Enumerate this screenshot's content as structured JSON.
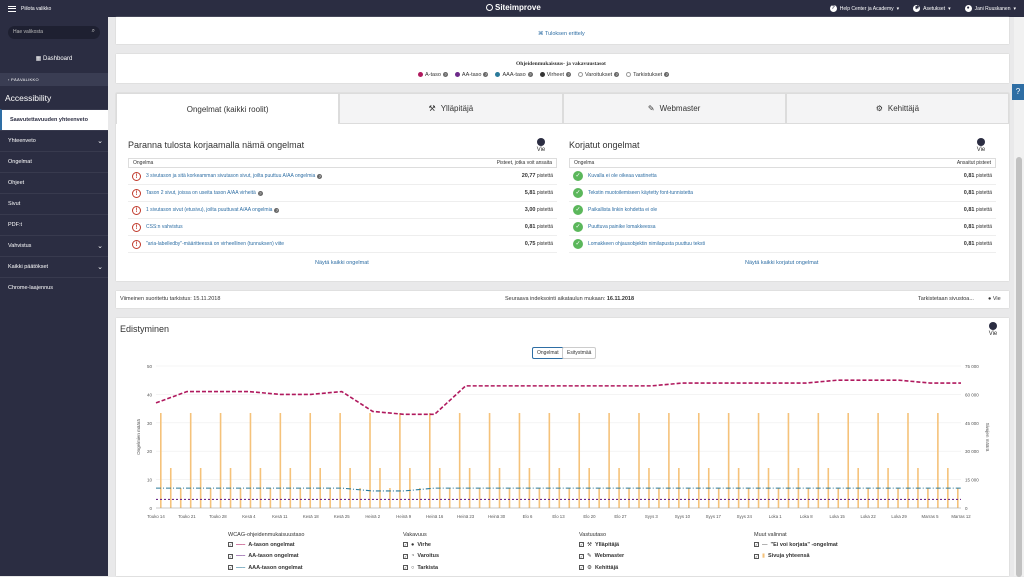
{
  "topbar": {
    "menu": "Piilota valikko",
    "brand": "Siteimprove",
    "help": "Help Center ja Academy",
    "settings": "Asetukset",
    "user": "Jani Ruuskanen"
  },
  "sidebar": {
    "search_placeholder": "Hae valikosta",
    "dashboard": "Dashboard",
    "back": "PÄÄVALIKKO",
    "section": "Accessibility",
    "items": [
      "Saavutettavuuden yhteenveto",
      "Yhteenveto",
      "Ongelmat",
      "Ohjeet",
      "Sivut",
      "PDF:t",
      "Vahvistus",
      "Kaikki päätökset",
      "Chrome-laajennus"
    ]
  },
  "top": {
    "results_link": "Tuloksen erittely",
    "legend_title": "Ohjeidenmukaisuus- ja vakavuustasot",
    "legend": [
      {
        "label": "A-taso",
        "color": "#b0195e"
      },
      {
        "label": "AA-taso",
        "color": "#6d2a8a"
      },
      {
        "label": "AAA-taso",
        "color": "#2a7a9a"
      },
      {
        "label": "Virheet",
        "color": "#333"
      },
      {
        "label": "Varoitukset",
        "color": "#999"
      },
      {
        "label": "Tarkistukset",
        "color": "#999"
      }
    ]
  },
  "tabs": [
    "Ongelmat (kaikki roolit)",
    "Ylläpitäjä",
    "Webmaster",
    "Kehittäjä"
  ],
  "fix": {
    "title": "Paranna tulosta korjaamalla nämä ongelmat",
    "export": "Vie",
    "col1": "Ongelma",
    "col2": "Pisteet, jotka voit ansaita",
    "rows": [
      {
        "text": "3 sivutason ja sitä korkeamman sivutason sivut, joilta puuttuu A/AA ongelmia",
        "value": "20,77"
      },
      {
        "text": "Tason 2 sivut, joissa on useita tason A/AA virheitä",
        "value": "5,81"
      },
      {
        "text": "1 sivutason sivut (etusivu), joilta puuttuvat A/AA ongelmia",
        "value": "3,00"
      },
      {
        "text": "CSS:n vahvistus",
        "value": "0,81"
      },
      {
        "text": "\"aria-labelledby\"-määritteessä on virheellinen (tunnuksen) viite",
        "value": "0,75"
      }
    ],
    "unit": "pistettä",
    "all": "Näytä kaikki ongelmat"
  },
  "fixed": {
    "title": "Korjatut ongelmat",
    "export": "Vie",
    "col1": "Ongelma",
    "col2": "Ansaitut pisteet",
    "rows": [
      {
        "text": "Kuvalla ei ole oikeaa vastinetta",
        "value": "0,81"
      },
      {
        "text": "Tekstin muotoilemiseen käytetty font-tunnistetta",
        "value": "0,81"
      },
      {
        "text": "Paikallista linkin kohdetta ei ole",
        "value": "0,81"
      },
      {
        "text": "Puuttuva painike lomakkeessa",
        "value": "0,81"
      },
      {
        "text": "Lomakkeen ohjausobjektin nimilapusta puuttuu teksti",
        "value": "0,81"
      }
    ],
    "unit": "pistettä",
    "all": "Näytä kaikki korjatut ongelmat"
  },
  "status": {
    "last": "Viimeinen suoritettu tarkistus: 15.11.2018",
    "next_label": "Seuraava indeksointi aikataulun mukaan:",
    "next_date": "16.11.2018",
    "checking": "Tarkistetaan sivustoa...",
    "export": "Vie"
  },
  "progress": {
    "title": "Edistyminen",
    "export": "Vie",
    "btn1": "Ongelmat",
    "btn2": "Esitystmää"
  },
  "chart_data": {
    "type": "line",
    "y_left_label": "Ongelmien määrä",
    "y_right_label": "Sivujen määrä",
    "y_left_ticks": [
      "50",
      "40",
      "30",
      "20",
      "10",
      "0"
    ],
    "y_right_ticks": [
      "75 000",
      "60 000",
      "45 000",
      "30 000",
      "15 000",
      "0"
    ],
    "x_ticks": [
      "Touko 14",
      "Touko 21",
      "Touko 28",
      "Kesä 4",
      "Kesä 11",
      "Kesä 18",
      "Kesä 25",
      "Heinä 2",
      "Heinä 9",
      "Heinä 16",
      "Heinä 23",
      "Heinä 30",
      "Elo 6",
      "Elo 13",
      "Elo 20",
      "Elo 27",
      "Syys 3",
      "Syys 10",
      "Syys 17",
      "Syys 24",
      "Loka 1",
      "Loka 8",
      "Loka 15",
      "Loka 22",
      "Loka 29",
      "Marras 5",
      "Marras 12"
    ],
    "series": [
      {
        "name": "A-tason ongelmat",
        "color": "#b0195e",
        "values": [
          37,
          41,
          41,
          41,
          40,
          40,
          41,
          34,
          33,
          33,
          43,
          43,
          43,
          43,
          43,
          43,
          43,
          44,
          44,
          44,
          44,
          44,
          45,
          45,
          45,
          44,
          44
        ]
      },
      {
        "name": "AA-tason ongelmat",
        "color": "#6d2a8a",
        "values": [
          3,
          3,
          3,
          3,
          3,
          3,
          3,
          3,
          3,
          3,
          3,
          3,
          3,
          3,
          3,
          3,
          3,
          3,
          3,
          3,
          3,
          3,
          3,
          3,
          3,
          3,
          3
        ]
      },
      {
        "name": "AAA-tason ongelmat",
        "color": "#2a7a9a",
        "values": [
          7,
          7,
          7,
          7,
          7,
          7,
          7,
          6,
          6,
          7,
          7,
          7,
          7,
          7,
          7,
          7,
          7,
          7,
          7,
          7,
          7,
          7,
          7,
          7,
          7,
          7,
          7
        ]
      }
    ]
  },
  "legend": {
    "wcag_title": "WCAG-ohjeidenmukaisuustaso",
    "wcag": [
      "A-tason ongelmat",
      "AA-tason ongelmat",
      "AAA-tason ongelmat"
    ],
    "sev_title": "Vakavuus",
    "sev": [
      "Virhe",
      "Varoitus",
      "Tarkista"
    ],
    "resp_title": "Vastuutaso",
    "resp": [
      "Ylläpitäjä",
      "Webmaster",
      "Kehittäjä"
    ],
    "other_title": "Muut valinnat",
    "other": [
      "\"Ei voi korjata\" -ongelmat",
      "Sivuja yhteensä"
    ]
  }
}
